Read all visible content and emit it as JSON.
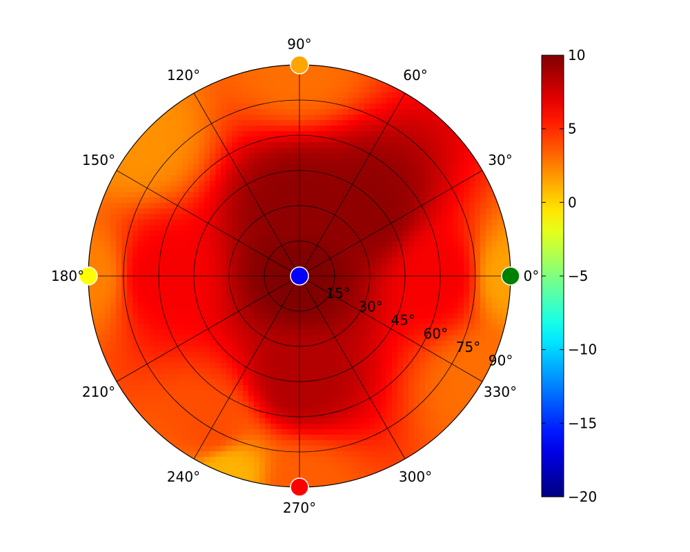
{
  "chart_data": {
    "type": "heatmap",
    "projection": "polar",
    "title": "",
    "angle_ticks": [
      "0°",
      "30°",
      "60°",
      "90°",
      "120°",
      "150°",
      "180°",
      "210°",
      "240°",
      "270°",
      "300°",
      "330°"
    ],
    "radial_ticks": [
      "15°",
      "30°",
      "45°",
      "60°",
      "75°",
      "90°"
    ],
    "rlim": [
      0,
      90
    ],
    "grid": true,
    "colormap": "jet",
    "colorbar": {
      "placement": "right",
      "vmin": -20,
      "vmax": 10,
      "ticks": [
        "10",
        "5",
        "0",
        "−5",
        "−10",
        "−15",
        "−20"
      ]
    },
    "field_samples": [
      {
        "azimuth_deg": 0,
        "zenith_deg": 0,
        "value": 10
      },
      {
        "azimuth_deg": 90,
        "zenith_deg": 30,
        "value": 9.5
      },
      {
        "azimuth_deg": 45,
        "zenith_deg": 40,
        "value": 9.5
      },
      {
        "azimuth_deg": 270,
        "zenith_deg": 45,
        "value": 8.5
      },
      {
        "azimuth_deg": 0,
        "zenith_deg": 60,
        "value": 6.5
      },
      {
        "azimuth_deg": 180,
        "zenith_deg": 60,
        "value": 6.5
      },
      {
        "azimuth_deg": 240,
        "zenith_deg": 75,
        "value": 4
      },
      {
        "azimuth_deg": 0,
        "zenith_deg": 90,
        "value": 1.5
      },
      {
        "azimuth_deg": 90,
        "zenith_deg": 90,
        "value": 3
      },
      {
        "azimuth_deg": 140,
        "zenith_deg": 90,
        "value": 2
      },
      {
        "azimuth_deg": 180,
        "zenith_deg": 90,
        "value": 2.5
      },
      {
        "azimuth_deg": 250,
        "zenith_deg": 90,
        "value": 1
      },
      {
        "azimuth_deg": 270,
        "zenith_deg": 90,
        "value": 3.5
      },
      {
        "azimuth_deg": 330,
        "zenith_deg": 90,
        "value": 3
      }
    ],
    "markers": [
      {
        "azimuth_deg": 0,
        "zenith_deg": 0,
        "value": -16,
        "color": "#0000ff"
      },
      {
        "azimuth_deg": 0,
        "zenith_deg": 90,
        "value": -6,
        "color": "#008000"
      },
      {
        "azimuth_deg": 90,
        "zenith_deg": 90,
        "value": 2.5,
        "color": "#ffa500"
      },
      {
        "azimuth_deg": 180,
        "zenith_deg": 90,
        "value": 0,
        "color": "#ffff00"
      },
      {
        "azimuth_deg": 270,
        "zenith_deg": 90,
        "value": 7,
        "color": "#ff0000"
      }
    ]
  }
}
